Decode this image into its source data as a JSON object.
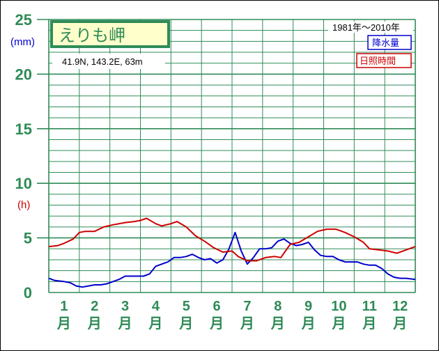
{
  "chart_data": {
    "type": "line",
    "title": "えりも岬",
    "location": "41.9N,  143.2E,  63m",
    "period": "1981年〜2010年",
    "unit_precip": "(mm)",
    "unit_sun": "(h)",
    "y_ticks": [
      "0",
      "5",
      "10",
      "15",
      "20",
      "25"
    ],
    "ylim": [
      0,
      25
    ],
    "x_numbers": [
      "1",
      "2",
      "3",
      "4",
      "5",
      "6",
      "7",
      "8",
      "9",
      "10",
      "11",
      "12"
    ],
    "month_label": "月",
    "grid": true,
    "legend_position": "top-right",
    "series": [
      {
        "name": "降水量",
        "color": "#0000cc",
        "x": [
          0.5,
          0.7,
          1.0,
          1.2,
          1.4,
          1.6,
          1.8,
          2.0,
          2.2,
          2.4,
          2.6,
          2.8,
          3.0,
          3.2,
          3.4,
          3.6,
          3.8,
          4.0,
          4.2,
          4.4,
          4.6,
          4.8,
          5.0,
          5.2,
          5.4,
          5.6,
          5.8,
          6.0,
          6.2,
          6.4,
          6.6,
          6.8,
          7.0,
          7.2,
          7.4,
          7.6,
          7.8,
          8.0,
          8.2,
          8.4,
          8.6,
          8.8,
          9.0,
          9.2,
          9.4,
          9.6,
          9.8,
          10.0,
          10.2,
          10.4,
          10.6,
          10.8,
          11.0,
          11.2,
          11.4,
          11.6,
          11.8,
          12.0,
          12.2,
          12.5
        ],
        "values": [
          1.3,
          1.1,
          1.0,
          0.9,
          0.6,
          0.5,
          0.6,
          0.7,
          0.7,
          0.8,
          1.0,
          1.2,
          1.5,
          1.5,
          1.5,
          1.5,
          1.7,
          2.4,
          2.6,
          2.8,
          3.2,
          3.2,
          3.3,
          3.5,
          3.2,
          3.0,
          3.1,
          2.7,
          3.0,
          4.0,
          5.5,
          3.8,
          2.6,
          3.2,
          4.0,
          4.0,
          4.1,
          4.7,
          4.9,
          4.5,
          4.3,
          4.4,
          4.6,
          3.9,
          3.4,
          3.3,
          3.3,
          3.0,
          2.8,
          2.8,
          2.8,
          2.6,
          2.5,
          2.5,
          2.2,
          1.7,
          1.4,
          1.3,
          1.3,
          1.2
        ]
      },
      {
        "name": "日照時間",
        "color": "#cc0000",
        "x": [
          0.5,
          0.8,
          1.0,
          1.3,
          1.5,
          1.7,
          2.0,
          2.3,
          2.6,
          3.0,
          3.3,
          3.5,
          3.7,
          4.0,
          4.2,
          4.5,
          4.7,
          5.0,
          5.3,
          5.6,
          5.9,
          6.2,
          6.5,
          6.7,
          7.0,
          7.3,
          7.6,
          7.9,
          8.1,
          8.4,
          8.7,
          9.0,
          9.3,
          9.6,
          9.9,
          10.2,
          10.5,
          10.8,
          11.0,
          11.3,
          11.6,
          11.9,
          12.2,
          12.5
        ],
        "values": [
          4.2,
          4.3,
          4.5,
          4.9,
          5.5,
          5.6,
          5.6,
          6.0,
          6.2,
          6.4,
          6.5,
          6.6,
          6.8,
          6.3,
          6.1,
          6.3,
          6.5,
          6.0,
          5.2,
          4.7,
          4.1,
          3.7,
          3.8,
          3.3,
          2.9,
          2.9,
          3.2,
          3.3,
          3.2,
          4.4,
          4.6,
          5.1,
          5.6,
          5.8,
          5.8,
          5.5,
          5.1,
          4.6,
          4.0,
          3.9,
          3.8,
          3.6,
          3.9,
          4.2
        ]
      }
    ]
  }
}
